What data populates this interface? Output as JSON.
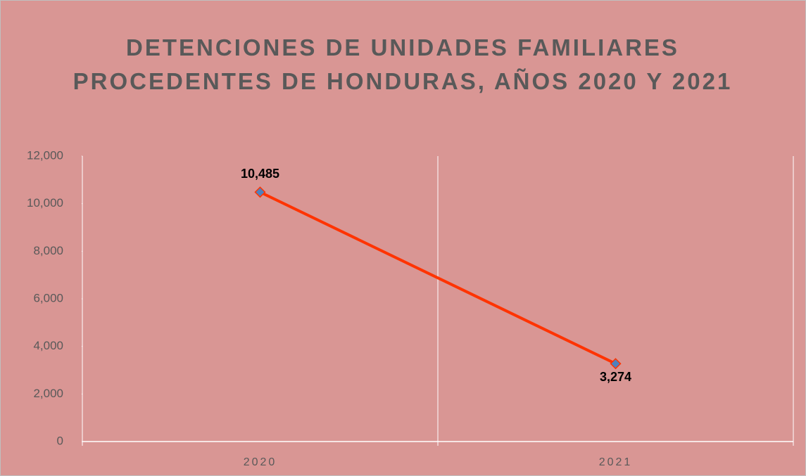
{
  "chart_data": {
    "type": "line",
    "title": "DETENCIONES DE UNIDADES FAMILIARES PROCEDENTES DE HONDURAS, AÑOS 2020 Y 2021",
    "categories": [
      "2020",
      "2021"
    ],
    "series": [
      {
        "name": null,
        "color": "#ff3300",
        "marker_color": "#4f81bd",
        "values": [
          10485,
          3274
        ],
        "value_labels": [
          "10,485",
          "3,274"
        ]
      }
    ],
    "ylim": [
      0,
      12000
    ],
    "yticks": [
      0,
      {
        "value": 2000,
        "label": "2,000"
      },
      {
        "value": 4000,
        "label": "4,000"
      },
      {
        "value": 6000,
        "label": "6,000"
      },
      {
        "value": 8000,
        "label": "8,000"
      },
      {
        "value": 10000,
        "label": "10,000"
      },
      {
        "value": 12000,
        "label": "12,000"
      }
    ],
    "background": "#d99694"
  }
}
